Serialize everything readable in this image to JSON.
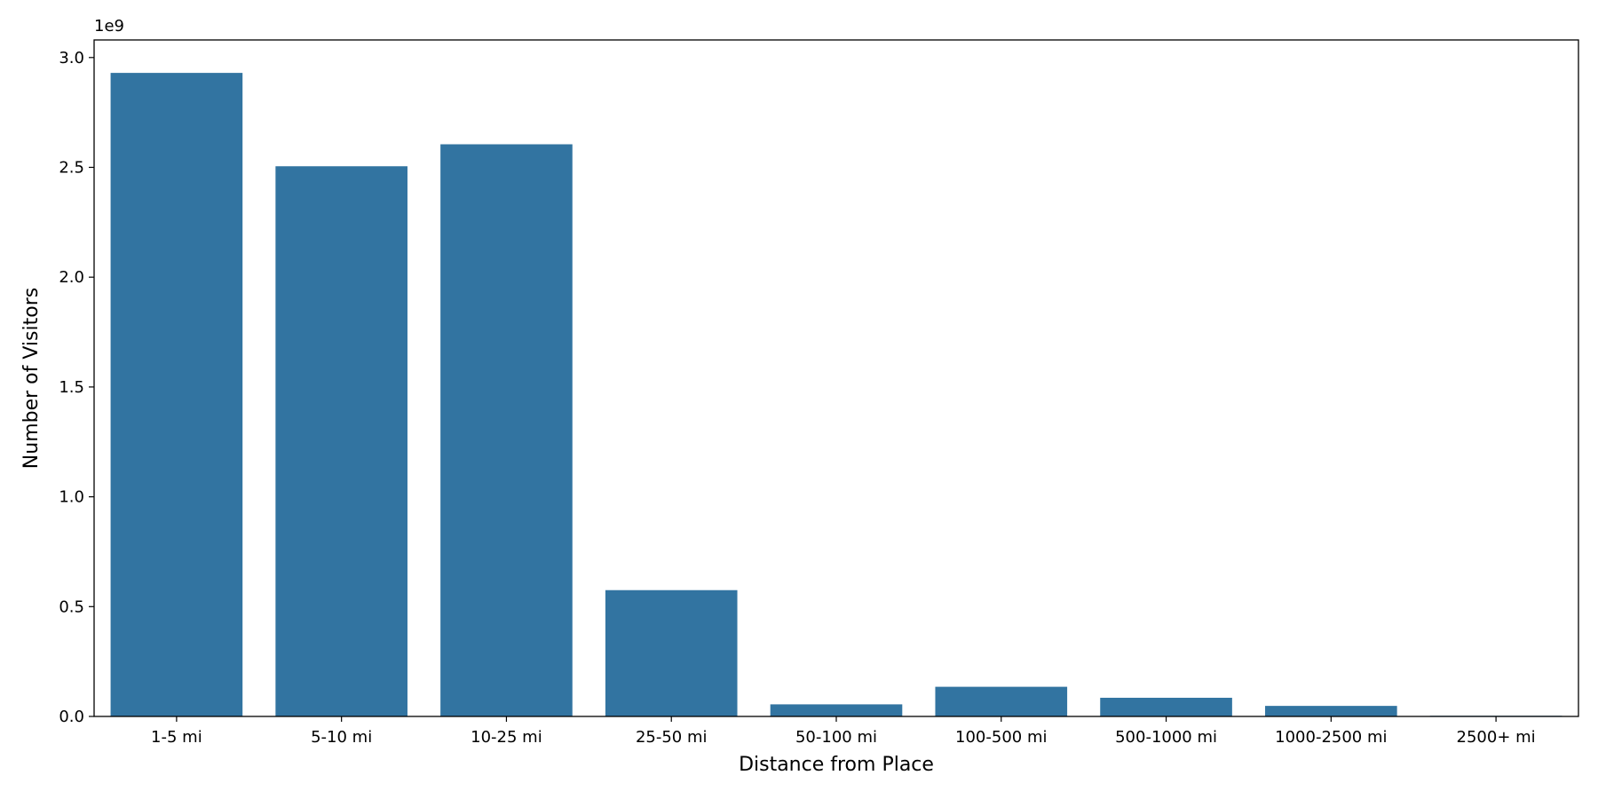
{
  "chart_data": {
    "type": "bar",
    "title": "",
    "xlabel": "Distance from Place",
    "ylabel": "Number of Visitors",
    "offset_text": "1e9",
    "categories": [
      "1-5 mi",
      "5-10 mi",
      "10-25 mi",
      "25-50 mi",
      "50-100 mi",
      "100-500 mi",
      "500-1000 mi",
      "1000-2500 mi",
      "2500+ mi"
    ],
    "values": [
      2930000000,
      2505000000,
      2605000000,
      575000000,
      55000000,
      135000000,
      85000000,
      48000000,
      3000000
    ],
    "ylim": [
      0,
      3080000000
    ],
    "yticks": [
      0,
      500000000,
      1000000000,
      1500000000,
      2000000000,
      2500000000,
      3000000000
    ],
    "ytick_labels": [
      "0.0",
      "0.5",
      "1.0",
      "1.5",
      "2.0",
      "2.5",
      "3.0"
    ],
    "grid": false,
    "bar_color": "#3274a1"
  }
}
